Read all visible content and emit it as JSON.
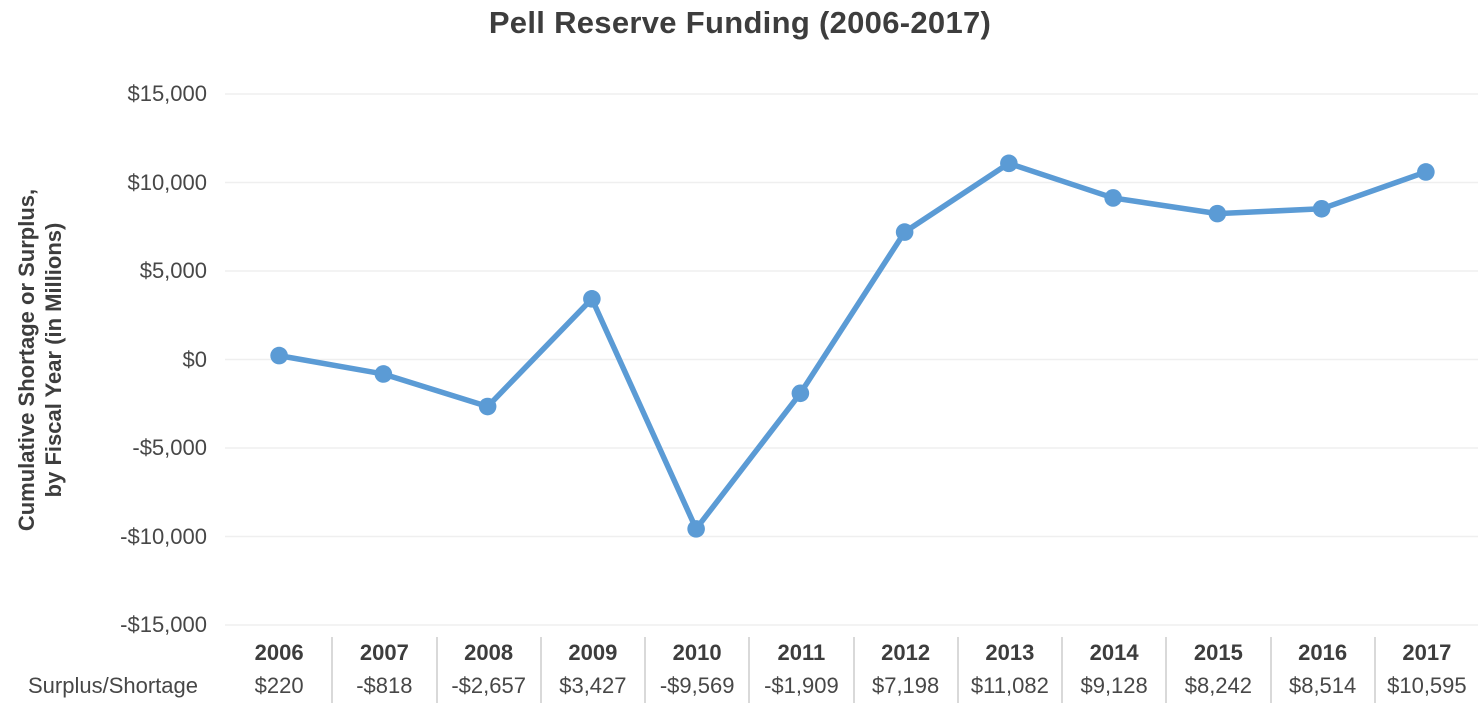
{
  "chart": {
    "title": "Pell Reserve Funding (2006-2017)",
    "y_axis_title_line1": "Cumulative Shortage or Surplus,",
    "y_axis_title_line2": "by Fiscal Year (in Millions)",
    "row_label": "Surplus/Shortage"
  },
  "chart_data": {
    "type": "line",
    "title": "Pell Reserve Funding (2006-2017)",
    "ylabel": "Cumulative Shortage or Surplus, by Fiscal Year (in Millions)",
    "xlabel": "",
    "series_name": "Surplus/Shortage",
    "categories": [
      "2006",
      "2007",
      "2008",
      "2009",
      "2010",
      "2011",
      "2012",
      "2013",
      "2014",
      "2015",
      "2016",
      "2017"
    ],
    "values": [
      220,
      -818,
      -2657,
      3427,
      -9569,
      -1909,
      7198,
      11082,
      9128,
      8242,
      8514,
      10595
    ],
    "value_labels": [
      "$220",
      "-$818",
      "-$2,657",
      "$3,427",
      "-$9,569",
      "-$1,909",
      "$7,198",
      "$11,082",
      "$9,128",
      "$8,242",
      "$8,514",
      "$10,595"
    ],
    "ylim": [
      -15000,
      15000
    ],
    "ytick_interval": 5000,
    "ytick_labels": [
      "$15,000",
      "$10,000",
      "$5,000",
      "$0",
      "-$5,000",
      "-$10,000",
      "-$15,000"
    ],
    "grid": true,
    "legend": false,
    "line_color": "#5B9BD5",
    "marker": "circle",
    "gridline_color": "#efefef",
    "divider_color": "#d9d9d9",
    "text_color": "#3d3d3d"
  }
}
